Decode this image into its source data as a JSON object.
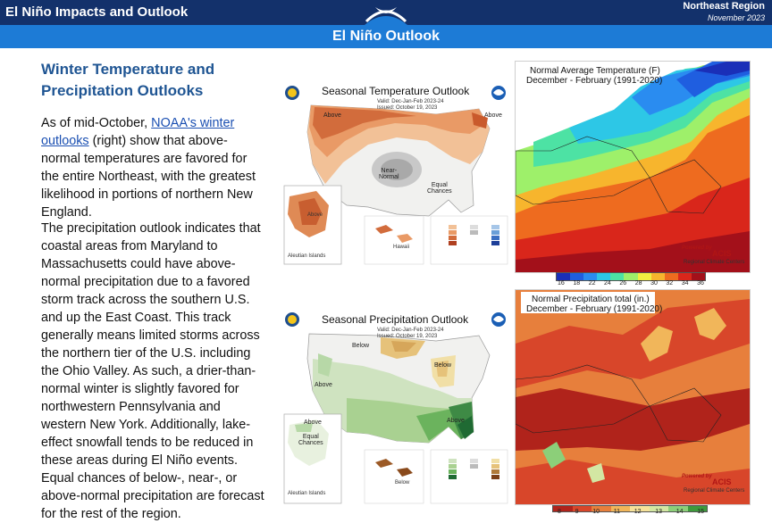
{
  "header": {
    "title": "El Niño Impacts and Outlook",
    "region": "Northeast Region",
    "date": "November 2023",
    "band_title": "El Niño Outlook"
  },
  "article": {
    "title": "Winter Temperature and Precipitation Outlooks",
    "p1_before": "As of mid-October, ",
    "p1_link": "NOAA's winter outlooks",
    "p1_after": " (right) show that above-normal temperatures are favored for the entire Northeast, with the greatest likelihood in portions of northern New England.",
    "p2": "The precipitation outlook indicates that coastal areas from Maryland to Massachusetts could have above-normal precipitation due to a favored storm track across the southern U.S. and up the East Coast. This track generally means limited storms across the northern tier of the U.S. including the Ohio Valley. As such, a drier-than-normal winter is slightly favored for northwestern Pennsylvania and western New York. Additionally, lake-effect snowfall tends to be reduced in these areas during El Niño events. Equal chances of below-, near-, or above-normal precipitation are forecast for the rest of the region."
  },
  "temp_outlook": {
    "title": "Seasonal Temperature Outlook",
    "valid": "Valid:   Dec-Jan-Feb 2023-24",
    "issued": "Issued:   October 19, 2023",
    "labels": {
      "above": "Above",
      "near_normal": "Near-\nNormal",
      "equal_chances": "Equal\nChances",
      "above_ak": "Above"
    },
    "inset_labels": {
      "aleutian": "Aleutian Islands",
      "below": "Below",
      "above": "Above",
      "hawaii": "Hawaii"
    }
  },
  "precip_outlook": {
    "title": "Seasonal Precipitation Outlook",
    "valid": "Valid:   Dec-Jan-Feb 2023-24",
    "issued": "Issued:   October 19, 2023",
    "labels": {
      "below": "Below",
      "below2": "Below",
      "above": "Above",
      "above2": "Above",
      "above_ak": "Above",
      "equal_chances": "Equal\nChances"
    },
    "inset_labels": {
      "aleutian": "Aleutian Islands",
      "below": "Below"
    }
  },
  "normal_temp": {
    "title": "Normal Average Temperature (F)",
    "subtitle": "December - February (1991-2020)",
    "powered": "Powered by",
    "acis": "ACIS",
    "rcc": "Regional Climate Centers",
    "ticks": [
      "16",
      "18",
      "22",
      "24",
      "26",
      "28",
      "30",
      "32",
      "34",
      "36"
    ],
    "colors": [
      "#1a2fb8",
      "#1f5ee0",
      "#2a8cf0",
      "#2dc7e6",
      "#4de2a4",
      "#9ef06a",
      "#f2f040",
      "#f7b52d",
      "#ee6b1f",
      "#d9261b",
      "#a3101a"
    ]
  },
  "normal_precip": {
    "title": "Normal Precipitation total (in.)",
    "subtitle": "December - February (1991-2020)",
    "powered": "Powered by",
    "acis": "ACIS",
    "rcc": "Regional Climate Centers",
    "ticks": [
      "8",
      "9",
      "10",
      "11",
      "12",
      "13",
      "14",
      "15"
    ],
    "colors": [
      "#b0231b",
      "#d8462a",
      "#e77f3c",
      "#f1b65a",
      "#f6e29a",
      "#d3e7a3",
      "#8ccf79",
      "#3e9a3c"
    ]
  }
}
